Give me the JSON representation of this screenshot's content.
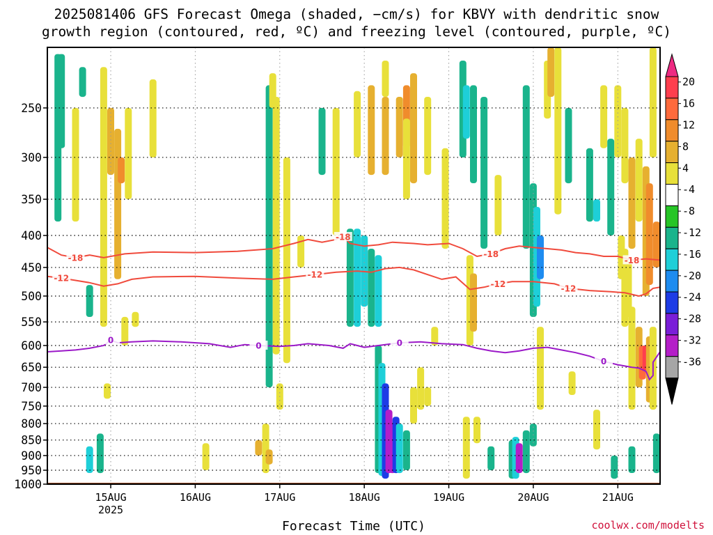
{
  "title": {
    "line1": "2025081406 GFS Forecast Omega (shaded, −cm/s) for KBVY with dendritic snow",
    "line2": "growth region (contoured, red, ºC) and freezing level (contoured, purple, ºC)"
  },
  "credit": "coolwx.com/modelts",
  "chart_data": {
    "type": "heatmap",
    "xlabel": "Forecast Time (UTC)",
    "ylabel": "",
    "x_ticks": [
      "15AUG",
      "16AUG",
      "17AUG",
      "18AUG",
      "19AUG",
      "20AUG",
      "21AUG"
    ],
    "x_sublabel": "2025",
    "x_range_hours": [
      -18,
      156
    ],
    "y_ticks": [
      250,
      300,
      350,
      400,
      450,
      500,
      550,
      600,
      650,
      700,
      750,
      800,
      850,
      900,
      950,
      1000
    ],
    "y_range_hPa": [
      200,
      1000
    ],
    "grid": true,
    "colorbar": {
      "tick_labels": [
        "20",
        "16",
        "12",
        "8",
        "4",
        "-4",
        "-8",
        "-12",
        "-16",
        "-20",
        "-24",
        "-28",
        "-32",
        "-36"
      ],
      "colors": [
        "#ff3e4e",
        "#ff6a3c",
        "#f08c2c",
        "#e6b030",
        "#e8e03a",
        "#ffffff",
        "#26c526",
        "#1ab48c",
        "#1ecfd8",
        "#1e8cf0",
        "#1e3ce6",
        "#7a1ed8",
        "#b41ec8",
        "#a6a6a6"
      ],
      "top_arrow_color": "#ee2a82",
      "bottom_arrow_color": "#000000"
    },
    "omega_cells": [
      {
        "t": -15,
        "p0": 205,
        "p1": 380,
        "omega": -8
      },
      {
        "t": -14,
        "p0": 205,
        "p1": 290,
        "omega": -8
      },
      {
        "t": -10,
        "p0": 250,
        "p1": 380,
        "omega": 4
      },
      {
        "t": -8,
        "p0": 215,
        "p1": 240,
        "omega": -8
      },
      {
        "t": -2,
        "p0": 215,
        "p1": 560,
        "omega": 4
      },
      {
        "t": 0,
        "p0": 250,
        "p1": 320,
        "omega": 8
      },
      {
        "t": 2,
        "p0": 270,
        "p1": 470,
        "omega": 8
      },
      {
        "t": 3,
        "p0": 300,
        "p1": 330,
        "omega": 12
      },
      {
        "t": 5,
        "p0": 250,
        "p1": 350,
        "omega": 4
      },
      {
        "t": -3,
        "p0": 830,
        "p1": 960,
        "omega": -8
      },
      {
        "t": -6,
        "p0": 870,
        "p1": 960,
        "omega": -12
      },
      {
        "t": -1,
        "p0": 690,
        "p1": 730,
        "omega": 4
      },
      {
        "t": 7,
        "p0": 530,
        "p1": 560,
        "omega": 4
      },
      {
        "t": -6,
        "p0": 480,
        "p1": 540,
        "omega": -8
      },
      {
        "t": 4,
        "p0": 540,
        "p1": 600,
        "omega": 4
      },
      {
        "t": 12,
        "p0": 225,
        "p1": 300,
        "omega": 4
      },
      {
        "t": 27,
        "p0": 860,
        "p1": 950,
        "omega": 4
      },
      {
        "t": 45,
        "p0": 230,
        "p1": 700,
        "omega": -8
      },
      {
        "t": 47,
        "p0": 240,
        "p1": 620,
        "omega": 4
      },
      {
        "t": 46,
        "p0": 220,
        "p1": 250,
        "omega": 4
      },
      {
        "t": 50,
        "p0": 300,
        "p1": 640,
        "omega": 4
      },
      {
        "t": 44,
        "p0": 800,
        "p1": 960,
        "omega": 4
      },
      {
        "t": 45,
        "p0": 880,
        "p1": 930,
        "omega": 8
      },
      {
        "t": 42,
        "p0": 850,
        "p1": 900,
        "omega": 8
      },
      {
        "t": 48,
        "p0": 690,
        "p1": 760,
        "omega": 4
      },
      {
        "t": 54,
        "p0": 400,
        "p1": 450,
        "omega": 4
      },
      {
        "t": 60,
        "p0": 250,
        "p1": 320,
        "omega": -8
      },
      {
        "t": 64,
        "p0": 250,
        "p1": 400,
        "omega": 4
      },
      {
        "t": 68,
        "p0": 390,
        "p1": 560,
        "omega": -8
      },
      {
        "t": 70,
        "p0": 390,
        "p1": 560,
        "omega": -12
      },
      {
        "t": 72,
        "p0": 400,
        "p1": 520,
        "omega": -12
      },
      {
        "t": 74,
        "p0": 420,
        "p1": 560,
        "omega": -8
      },
      {
        "t": 76,
        "p0": 430,
        "p1": 560,
        "omega": -12
      },
      {
        "t": 70,
        "p0": 235,
        "p1": 300,
        "omega": 4
      },
      {
        "t": 74,
        "p0": 230,
        "p1": 320,
        "omega": 8
      },
      {
        "t": 78,
        "p0": 240,
        "p1": 320,
        "omega": 8
      },
      {
        "t": 78,
        "p0": 210,
        "p1": 240,
        "omega": 4
      },
      {
        "t": 82,
        "p0": 240,
        "p1": 300,
        "omega": 8
      },
      {
        "t": 84,
        "p0": 230,
        "p1": 290,
        "omega": 12
      },
      {
        "t": 86,
        "p0": 220,
        "p1": 330,
        "omega": 8
      },
      {
        "t": 84,
        "p0": 260,
        "p1": 350,
        "omega": 4
      },
      {
        "t": 90,
        "p0": 240,
        "p1": 320,
        "omega": 4
      },
      {
        "t": 76,
        "p0": 600,
        "p1": 960,
        "omega": -8
      },
      {
        "t": 77,
        "p0": 640,
        "p1": 970,
        "omega": -12
      },
      {
        "t": 78,
        "p0": 690,
        "p1": 980,
        "omega": -20
      },
      {
        "t": 79,
        "p0": 760,
        "p1": 960,
        "omega": -28
      },
      {
        "t": 80,
        "p0": 800,
        "p1": 960,
        "omega": -36
      },
      {
        "t": 81,
        "p0": 780,
        "p1": 960,
        "omega": -20
      },
      {
        "t": 82,
        "p0": 800,
        "p1": 960,
        "omega": -12
      },
      {
        "t": 84,
        "p0": 820,
        "p1": 950,
        "omega": -8
      },
      {
        "t": 88,
        "p0": 650,
        "p1": 760,
        "omega": 4
      },
      {
        "t": 86,
        "p0": 700,
        "p1": 800,
        "omega": 4
      },
      {
        "t": 90,
        "p0": 700,
        "p1": 750,
        "omega": 4
      },
      {
        "t": 92,
        "p0": 560,
        "p1": 600,
        "omega": 4
      },
      {
        "t": 95,
        "p0": 290,
        "p1": 420,
        "omega": 4
      },
      {
        "t": 100,
        "p0": 210,
        "p1": 300,
        "omega": -8
      },
      {
        "t": 101,
        "p0": 230,
        "p1": 280,
        "omega": -12
      },
      {
        "t": 103,
        "p0": 230,
        "p1": 330,
        "omega": -8
      },
      {
        "t": 106,
        "p0": 240,
        "p1": 420,
        "omega": -8
      },
      {
        "t": 110,
        "p0": 320,
        "p1": 400,
        "omega": 4
      },
      {
        "t": 102,
        "p0": 430,
        "p1": 600,
        "omega": 4
      },
      {
        "t": 103,
        "p0": 460,
        "p1": 570,
        "omega": 8
      },
      {
        "t": 101,
        "p0": 780,
        "p1": 980,
        "omega": 4
      },
      {
        "t": 104,
        "p0": 780,
        "p1": 860,
        "omega": 4
      },
      {
        "t": 108,
        "p0": 870,
        "p1": 950,
        "omega": -8
      },
      {
        "t": 114,
        "p0": 850,
        "p1": 980,
        "omega": -8
      },
      {
        "t": 115,
        "p0": 840,
        "p1": 980,
        "omega": -12
      },
      {
        "t": 116,
        "p0": 860,
        "p1": 960,
        "omega": -28
      },
      {
        "t": 118,
        "p0": 820,
        "p1": 960,
        "omega": -8
      },
      {
        "t": 120,
        "p0": 800,
        "p1": 870,
        "omega": -8
      },
      {
        "t": 122,
        "p0": 560,
        "p1": 760,
        "omega": 4
      },
      {
        "t": 118,
        "p0": 230,
        "p1": 420,
        "omega": -8
      },
      {
        "t": 120,
        "p0": 330,
        "p1": 540,
        "omega": -8
      },
      {
        "t": 121,
        "p0": 360,
        "p1": 520,
        "omega": -12
      },
      {
        "t": 122,
        "p0": 400,
        "p1": 470,
        "omega": -16
      },
      {
        "t": 124,
        "p0": 210,
        "p1": 260,
        "omega": 4
      },
      {
        "t": 125,
        "p0": 200,
        "p1": 240,
        "omega": 8
      },
      {
        "t": 127,
        "p0": 200,
        "p1": 370,
        "omega": 4
      },
      {
        "t": 130,
        "p0": 250,
        "p1": 330,
        "omega": -8
      },
      {
        "t": 136,
        "p0": 290,
        "p1": 380,
        "omega": -8
      },
      {
        "t": 138,
        "p0": 350,
        "p1": 380,
        "omega": -12
      },
      {
        "t": 140,
        "p0": 230,
        "p1": 290,
        "omega": 4
      },
      {
        "t": 142,
        "p0": 280,
        "p1": 400,
        "omega": -8
      },
      {
        "t": 144,
        "p0": 230,
        "p1": 300,
        "omega": 4
      },
      {
        "t": 146,
        "p0": 250,
        "p1": 330,
        "omega": 4
      },
      {
        "t": 148,
        "p0": 300,
        "p1": 420,
        "omega": 8
      },
      {
        "t": 150,
        "p0": 280,
        "p1": 380,
        "omega": 4
      },
      {
        "t": 152,
        "p0": 310,
        "p1": 500,
        "omega": 8
      },
      {
        "t": 153,
        "p0": 330,
        "p1": 480,
        "omega": 12
      },
      {
        "t": 154,
        "p0": 200,
        "p1": 300,
        "omega": 4
      },
      {
        "t": 155,
        "p0": 380,
        "p1": 450,
        "omega": 12
      },
      {
        "t": 145,
        "p0": 400,
        "p1": 470,
        "omega": 4
      },
      {
        "t": 146,
        "p0": 420,
        "p1": 560,
        "omega": 4
      },
      {
        "t": 147,
        "p0": 440,
        "p1": 540,
        "omega": 4
      },
      {
        "t": 148,
        "p0": 520,
        "p1": 760,
        "omega": 4
      },
      {
        "t": 150,
        "p0": 560,
        "p1": 700,
        "omega": 8
      },
      {
        "t": 151,
        "p0": 600,
        "p1": 680,
        "omega": 16
      },
      {
        "t": 152,
        "p0": 600,
        "p1": 660,
        "omega": 20
      },
      {
        "t": 153,
        "p0": 580,
        "p1": 740,
        "omega": 8
      },
      {
        "t": 154,
        "p0": 560,
        "p1": 760,
        "omega": 4
      },
      {
        "t": 155,
        "p0": 830,
        "p1": 960,
        "omega": -8
      },
      {
        "t": 148,
        "p0": 870,
        "p1": 960,
        "omega": -8
      },
      {
        "t": 143,
        "p0": 900,
        "p1": 980,
        "omega": -8
      },
      {
        "t": 138,
        "p0": 760,
        "p1": 880,
        "omega": 4
      },
      {
        "t": 131,
        "p0": 660,
        "p1": 720,
        "omega": 4
      }
    ],
    "contours": [
      {
        "name": "-18",
        "color": "#f04a3c",
        "label_at_hours": [
          -11,
          66,
          107,
          147
        ],
        "points": [
          [
            -18,
            418
          ],
          [
            -14,
            430
          ],
          [
            -10,
            434
          ],
          [
            -6,
            430
          ],
          [
            -2,
            434
          ],
          [
            4,
            428
          ],
          [
            12,
            425
          ],
          [
            24,
            426
          ],
          [
            36,
            424
          ],
          [
            46,
            420
          ],
          [
            52,
            412
          ],
          [
            56,
            406
          ],
          [
            60,
            410
          ],
          [
            64,
            406
          ],
          [
            66,
            402
          ],
          [
            68,
            412
          ],
          [
            72,
            416
          ],
          [
            76,
            414
          ],
          [
            80,
            410
          ],
          [
            86,
            412
          ],
          [
            90,
            414
          ],
          [
            96,
            412
          ],
          [
            100,
            420
          ],
          [
            104,
            432
          ],
          [
            108,
            428
          ],
          [
            112,
            420
          ],
          [
            116,
            416
          ],
          [
            120,
            418
          ],
          [
            124,
            420
          ],
          [
            128,
            422
          ],
          [
            132,
            426
          ],
          [
            136,
            428
          ],
          [
            140,
            432
          ],
          [
            144,
            432
          ],
          [
            148,
            438
          ],
          [
            152,
            436
          ],
          [
            156,
            438
          ]
        ]
      },
      {
        "name": "-12",
        "color": "#f04a3c",
        "label_at_hours": [
          -14,
          60,
          110,
          132
        ],
        "points": [
          [
            -18,
            465
          ],
          [
            -14,
            468
          ],
          [
            -10,
            472
          ],
          [
            -6,
            476
          ],
          [
            -2,
            482
          ],
          [
            2,
            478
          ],
          [
            6,
            470
          ],
          [
            12,
            466
          ],
          [
            24,
            465
          ],
          [
            36,
            468
          ],
          [
            46,
            470
          ],
          [
            52,
            466
          ],
          [
            58,
            462
          ],
          [
            64,
            458
          ],
          [
            70,
            456
          ],
          [
            74,
            458
          ],
          [
            78,
            452
          ],
          [
            82,
            450
          ],
          [
            86,
            454
          ],
          [
            90,
            462
          ],
          [
            94,
            470
          ],
          [
            98,
            466
          ],
          [
            102,
            488
          ],
          [
            106,
            484
          ],
          [
            110,
            478
          ],
          [
            114,
            474
          ],
          [
            120,
            474
          ],
          [
            126,
            478
          ],
          [
            130,
            486
          ],
          [
            136,
            490
          ],
          [
            142,
            492
          ],
          [
            146,
            494
          ],
          [
            150,
            500
          ],
          [
            152,
            496
          ],
          [
            154,
            486
          ],
          [
            156,
            484
          ]
        ]
      },
      {
        "name": "0",
        "color": "#9b19c8",
        "label_at_hours": [
          1,
          42,
          84,
          140
        ],
        "points": [
          [
            -18,
            614
          ],
          [
            -14,
            612
          ],
          [
            -10,
            610
          ],
          [
            -6,
            606
          ],
          [
            -2,
            600
          ],
          [
            0,
            588
          ],
          [
            2,
            594
          ],
          [
            6,
            592
          ],
          [
            12,
            590
          ],
          [
            20,
            592
          ],
          [
            28,
            596
          ],
          [
            34,
            604
          ],
          [
            38,
            598
          ],
          [
            42,
            600
          ],
          [
            48,
            602
          ],
          [
            52,
            600
          ],
          [
            56,
            596
          ],
          [
            62,
            600
          ],
          [
            66,
            606
          ],
          [
            68,
            596
          ],
          [
            72,
            604
          ],
          [
            76,
            600
          ],
          [
            82,
            594
          ],
          [
            88,
            592
          ],
          [
            94,
            596
          ],
          [
            100,
            598
          ],
          [
            104,
            606
          ],
          [
            108,
            612
          ],
          [
            112,
            616
          ],
          [
            116,
            612
          ],
          [
            120,
            606
          ],
          [
            124,
            604
          ],
          [
            128,
            610
          ],
          [
            132,
            616
          ],
          [
            136,
            624
          ],
          [
            140,
            636
          ],
          [
            144,
            644
          ],
          [
            148,
            650
          ],
          [
            150,
            652
          ],
          [
            152,
            660
          ],
          [
            153,
            680
          ],
          [
            154,
            670
          ],
          [
            154,
            638
          ],
          [
            156,
            614
          ]
        ]
      }
    ],
    "surface_color": "#9c4e28"
  }
}
